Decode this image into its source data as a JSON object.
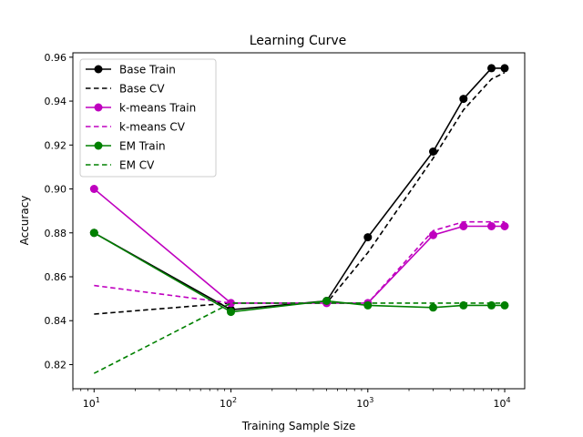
{
  "chart_data": {
    "type": "line",
    "title": "Learning Curve",
    "xlabel": "Training Sample Size",
    "ylabel": "Accuracy",
    "xscale": "log",
    "xlim": [
      7,
      14000
    ],
    "ylim": [
      0.809,
      0.962
    ],
    "x_ticks": [
      {
        "value": 10,
        "base": "10",
        "exp": "1"
      },
      {
        "value": 100,
        "base": "10",
        "exp": "2"
      },
      {
        "value": 1000,
        "base": "10",
        "exp": "3"
      },
      {
        "value": 10000,
        "base": "10",
        "exp": "4"
      }
    ],
    "y_ticks": [
      {
        "value": 0.82,
        "label": "0.82"
      },
      {
        "value": 0.84,
        "label": "0.84"
      },
      {
        "value": 0.86,
        "label": "0.86"
      },
      {
        "value": 0.88,
        "label": "0.88"
      },
      {
        "value": 0.9,
        "label": "0.90"
      },
      {
        "value": 0.92,
        "label": "0.92"
      },
      {
        "value": 0.94,
        "label": "0.94"
      },
      {
        "value": 0.96,
        "label": "0.96"
      }
    ],
    "legend_position": "top-left",
    "grid": false,
    "series": [
      {
        "name": "Base Train",
        "color": "#000000",
        "style": "solid",
        "marker": true,
        "x": [
          10,
          100,
          500,
          1000,
          3000,
          5000,
          8000,
          10000
        ],
        "y": [
          0.88,
          0.845,
          0.849,
          0.878,
          0.917,
          0.941,
          0.955,
          0.955
        ]
      },
      {
        "name": "Base CV",
        "color": "#000000",
        "style": "dashed",
        "marker": false,
        "x": [
          10,
          100,
          500,
          1000,
          3000,
          5000,
          8000,
          10000
        ],
        "y": [
          0.843,
          0.848,
          0.848,
          0.871,
          0.914,
          0.936,
          0.95,
          0.953
        ]
      },
      {
        "name": "k-means Train",
        "color": "#bf00bf",
        "style": "solid",
        "marker": true,
        "x": [
          10,
          100,
          500,
          1000,
          3000,
          5000,
          8000,
          10000
        ],
        "y": [
          0.9,
          0.848,
          0.848,
          0.848,
          0.879,
          0.883,
          0.883,
          0.883
        ]
      },
      {
        "name": "k-means CV",
        "color": "#bf00bf",
        "style": "dashed",
        "marker": false,
        "x": [
          10,
          100,
          500,
          1000,
          3000,
          5000,
          8000,
          10000
        ],
        "y": [
          0.856,
          0.848,
          0.848,
          0.848,
          0.881,
          0.885,
          0.885,
          0.885
        ]
      },
      {
        "name": "EM Train",
        "color": "#008000",
        "style": "solid",
        "marker": true,
        "x": [
          10,
          100,
          500,
          1000,
          3000,
          5000,
          8000,
          10000
        ],
        "y": [
          0.88,
          0.844,
          0.849,
          0.847,
          0.846,
          0.847,
          0.847,
          0.847
        ]
      },
      {
        "name": "EM CV",
        "color": "#008000",
        "style": "dashed",
        "marker": false,
        "x": [
          10,
          100,
          500,
          1000,
          3000,
          5000,
          8000,
          10000
        ],
        "y": [
          0.816,
          0.848,
          0.848,
          0.848,
          0.848,
          0.848,
          0.848,
          0.848
        ]
      }
    ]
  }
}
